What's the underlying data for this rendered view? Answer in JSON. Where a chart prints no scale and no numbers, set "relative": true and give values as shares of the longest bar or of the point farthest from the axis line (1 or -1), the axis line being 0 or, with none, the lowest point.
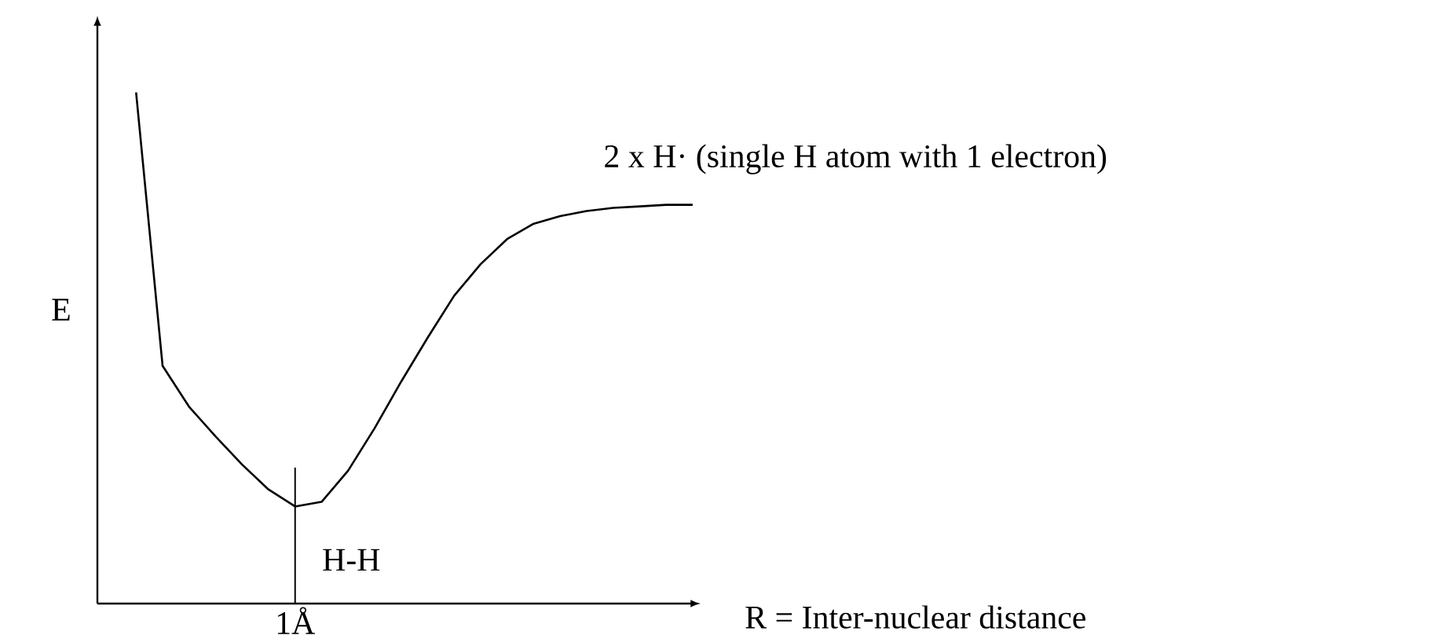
{
  "chart_data": {
    "type": "line",
    "relative": true,
    "xlabel": "R = Inter-nuclear distance",
    "ylabel": "E",
    "categories": [
      null,
      null,
      null,
      null,
      null,
      null,
      null,
      null,
      null,
      null,
      null,
      null,
      null,
      null,
      null,
      null,
      null,
      null,
      null,
      null,
      null,
      null
    ],
    "series": [
      {
        "color": "#000000",
        "values": [
          1,
          0.465,
          0.385,
          0.327,
          0.272,
          0.223,
          0.19,
          0.199,
          0.26,
          0.343,
          0.434,
          0.52,
          0.602,
          0.664,
          0.713,
          0.743,
          0.758,
          0.768,
          0.774,
          0.777,
          0.78,
          0.78
        ]
      }
    ],
    "annotations": [
      "2 x H·  (single H atom with 1 electron)",
      "H-H",
      "1Å"
    ]
  }
}
